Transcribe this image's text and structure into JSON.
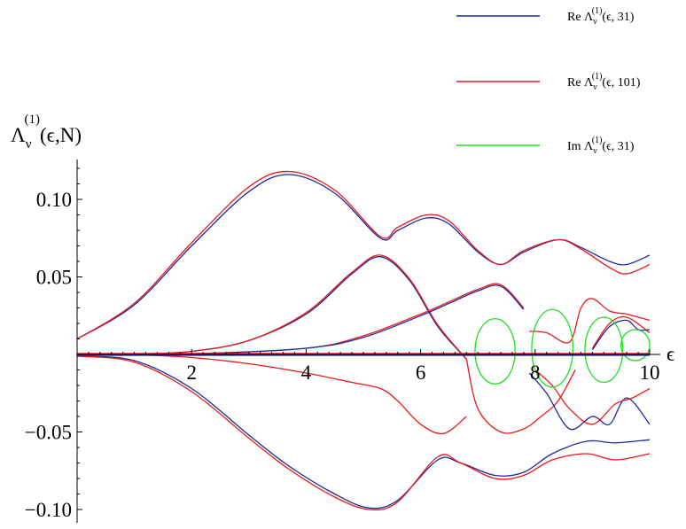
{
  "chart_data": {
    "type": "line",
    "ylabel": "Λ_ν^(1)(ϵ,N)",
    "xlabel": "ϵ",
    "xlim": [
      0,
      10
    ],
    "ylim": [
      -0.11,
      0.13
    ],
    "x_ticks": [
      2,
      4,
      6,
      8,
      10
    ],
    "y_ticks": [
      -0.1,
      -0.05,
      0.05,
      0.1
    ],
    "y_tick_labels": [
      "−0.10",
      "−0.05",
      "0.05",
      "0.10"
    ],
    "x_tick_labels": [
      "2",
      "4",
      "6",
      "8",
      "10"
    ],
    "grid": false,
    "legend_position": "top-right",
    "colors": {
      "re31": "#1f2a9a",
      "re101": "#e8191b",
      "im31": "#22dd22"
    },
    "legend": [
      {
        "key": "re31",
        "label_pre": "Re Λ",
        "label_post": "(ϵ, 31)"
      },
      {
        "key": "re101",
        "label_pre": "Re Λ",
        "label_post": "(ϵ, 101)"
      },
      {
        "key": "im31",
        "label_pre": "Im Λ",
        "label_post": "(ϵ, 31)"
      }
    ],
    "series": [
      {
        "key": "re31",
        "x": [
          0,
          1,
          2,
          3,
          3.7,
          4.5,
          5.3,
          5.6,
          6.1,
          6.5,
          7,
          7.4,
          7.8,
          8.4,
          8.8,
          9.3,
          9.6,
          10
        ],
        "y": [
          0.01,
          0.032,
          0.07,
          0.105,
          0.116,
          0.104,
          0.075,
          0.08,
          0.088,
          0.084,
          0.066,
          0.058,
          0.066,
          0.074,
          0.069,
          0.06,
          0.058,
          0.064
        ]
      },
      {
        "key": "re101",
        "x": [
          0,
          1,
          2,
          3,
          3.7,
          4.5,
          5.3,
          5.6,
          6.1,
          6.5,
          7,
          7.4,
          7.8,
          8.4,
          8.8,
          9.3,
          9.6,
          10
        ],
        "y": [
          0.01,
          0.033,
          0.072,
          0.108,
          0.118,
          0.106,
          0.076,
          0.082,
          0.09,
          0.086,
          0.067,
          0.058,
          0.067,
          0.074,
          0.068,
          0.056,
          0.052,
          0.058
        ]
      },
      {
        "key": "re31",
        "x": [
          0,
          1,
          2,
          3,
          3.7,
          4.5,
          5.1,
          5.6,
          6.3,
          6.7,
          7.3,
          7.8,
          8.3,
          8.9,
          9.4,
          10
        ],
        "y": [
          -0.001,
          -0.004,
          -0.022,
          -0.052,
          -0.072,
          -0.09,
          -0.099,
          -0.094,
          -0.068,
          -0.07,
          -0.078,
          -0.076,
          -0.064,
          -0.056,
          -0.057,
          -0.055
        ]
      },
      {
        "key": "re101",
        "x": [
          0,
          1,
          2,
          3,
          3.7,
          4.5,
          5.1,
          5.6,
          6.3,
          6.7,
          7.3,
          7.8,
          8.3,
          8.9,
          9.4,
          10
        ],
        "y": [
          -0.001,
          -0.005,
          -0.024,
          -0.054,
          -0.074,
          -0.092,
          -0.1,
          -0.095,
          -0.066,
          -0.07,
          -0.08,
          -0.078,
          -0.068,
          -0.064,
          -0.068,
          -0.064
        ]
      },
      {
        "key": "re31",
        "x": [
          0,
          1,
          2,
          3,
          4,
          4.8,
          5.3,
          5.8,
          6.3,
          6.8
        ],
        "y": [
          0,
          0.0002,
          0.002,
          0.009,
          0.026,
          0.052,
          0.063,
          0.048,
          0.018,
          -0.003
        ]
      },
      {
        "key": "re101",
        "x": [
          0,
          1,
          2,
          3,
          4,
          4.8,
          5.3,
          5.8,
          6.3,
          6.8
        ],
        "y": [
          0,
          0.0002,
          0.002,
          0.009,
          0.027,
          0.053,
          0.064,
          0.049,
          0.019,
          -0.003
        ]
      },
      {
        "key": "re101",
        "x": [
          0,
          1,
          2,
          3,
          4,
          4.8,
          5.3,
          5.6,
          6,
          6.4,
          6.8
        ],
        "y": [
          0,
          -0.0002,
          -0.002,
          -0.006,
          -0.012,
          -0.018,
          -0.022,
          -0.03,
          -0.045,
          -0.051,
          -0.04
        ]
      },
      {
        "key": "re101",
        "x": [
          0,
          2,
          4,
          5,
          6,
          6.5,
          7,
          7.4,
          7.8
        ],
        "y": [
          0,
          0.0005,
          0.004,
          0.012,
          0.026,
          0.034,
          0.042,
          0.045,
          0.03
        ]
      },
      {
        "key": "re31",
        "x": [
          0,
          2,
          4,
          5,
          6,
          6.5,
          7,
          7.4,
          7.8
        ],
        "y": [
          0,
          0.0004,
          0.004,
          0.011,
          0.025,
          0.033,
          0.041,
          0.044,
          0.029
        ]
      },
      {
        "key": "re101",
        "x": [
          6.8,
          7.0,
          7.4,
          7.8,
          8.1,
          8.4,
          8.7
        ],
        "y": [
          -0.003,
          -0.035,
          -0.05,
          -0.048,
          -0.04,
          -0.03,
          -0.01
        ]
      },
      {
        "key": "re101",
        "x": [
          7.9,
          8.2,
          8.6,
          8.8,
          9.0,
          9.3,
          9.6,
          10
        ],
        "y": [
          0.015,
          0.014,
          0.008,
          0.03,
          0.036,
          0.028,
          0.026,
          0.022
        ]
      },
      {
        "key": "re31",
        "x": [
          7.9,
          8.2,
          8.6,
          9.0,
          9.3,
          9.6,
          10
        ],
        "y": [
          -0.012,
          -0.025,
          -0.048,
          -0.04,
          -0.045,
          -0.028,
          -0.045
        ]
      },
      {
        "key": "re101",
        "x": [
          8.0,
          8.3,
          8.6,
          9.0,
          9.4,
          9.7,
          10
        ],
        "y": [
          -0.01,
          -0.02,
          -0.035,
          -0.045,
          -0.032,
          -0.028,
          -0.022
        ]
      },
      {
        "key": "re101",
        "x": [
          9.0,
          9.3,
          9.6,
          10
        ],
        "y": [
          0.004,
          0.02,
          0.024,
          0.014
        ]
      },
      {
        "key": "re31",
        "x": [
          9.0,
          9.3,
          9.6,
          9.8,
          10
        ],
        "y": [
          0.003,
          0.018,
          0.022,
          0.016,
          0.016
        ]
      }
    ],
    "ellipses": [
      {
        "key": "im31",
        "cx": 7.3,
        "cy": 0.002,
        "rx": 0.35,
        "ry": 0.021
      },
      {
        "key": "im31",
        "cx": 8.3,
        "cy": 0.004,
        "rx": 0.36,
        "ry": 0.025
      },
      {
        "key": "im31",
        "cx": 9.2,
        "cy": 0.003,
        "rx": 0.33,
        "ry": 0.021
      },
      {
        "key": "im31",
        "cx": 9.75,
        "cy": 0.006,
        "rx": 0.25,
        "ry": 0.01
      }
    ]
  }
}
